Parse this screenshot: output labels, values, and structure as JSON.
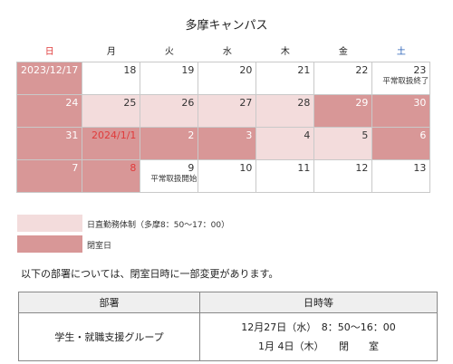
{
  "title": "多摩キャンパス",
  "weekdays": [
    "日",
    "月",
    "火",
    "水",
    "木",
    "金",
    "土"
  ],
  "weeks": [
    [
      {
        "label": "2023/12/17",
        "bg": "dark"
      },
      {
        "label": "18"
      },
      {
        "label": "19"
      },
      {
        "label": "20"
      },
      {
        "label": "21"
      },
      {
        "label": "22"
      },
      {
        "label": "23",
        "note": "平常取扱終了"
      }
    ],
    [
      {
        "label": "24",
        "bg": "dark"
      },
      {
        "label": "25",
        "bg": "light"
      },
      {
        "label": "26",
        "bg": "light"
      },
      {
        "label": "27",
        "bg": "light"
      },
      {
        "label": "28",
        "bg": "light"
      },
      {
        "label": "29",
        "bg": "dark"
      },
      {
        "label": "30",
        "bg": "dark"
      }
    ],
    [
      {
        "label": "31",
        "bg": "dark"
      },
      {
        "label": "2024/1/1",
        "bg": "dark",
        "red": true
      },
      {
        "label": "2",
        "bg": "dark"
      },
      {
        "label": "3",
        "bg": "dark"
      },
      {
        "label": "4",
        "bg": "light"
      },
      {
        "label": "5",
        "bg": "light"
      },
      {
        "label": "6",
        "bg": "dark"
      }
    ],
    [
      {
        "label": "7",
        "bg": "dark"
      },
      {
        "label": "8",
        "bg": "dark",
        "red": true
      },
      {
        "label": "9",
        "note": "平常取扱開始"
      },
      {
        "label": "10"
      },
      {
        "label": "11"
      },
      {
        "label": "12"
      },
      {
        "label": "13"
      }
    ]
  ],
  "legend": [
    {
      "label": "日直勤務体制（多摩8：50～17：00）",
      "color": "#f3dcdc"
    },
    {
      "label": "閉室日",
      "color": "#d89797"
    }
  ],
  "notice": "以下の部署については、閉室日時に一部変更があります。",
  "table": {
    "headers": [
      "部署",
      "日時等"
    ],
    "rows": [
      {
        "dept": "学生・就職支援グループ",
        "lines": [
          "12月27日（水）　8：50～16：00",
          "1月 4日（木）　　閉　　室"
        ]
      }
    ]
  }
}
